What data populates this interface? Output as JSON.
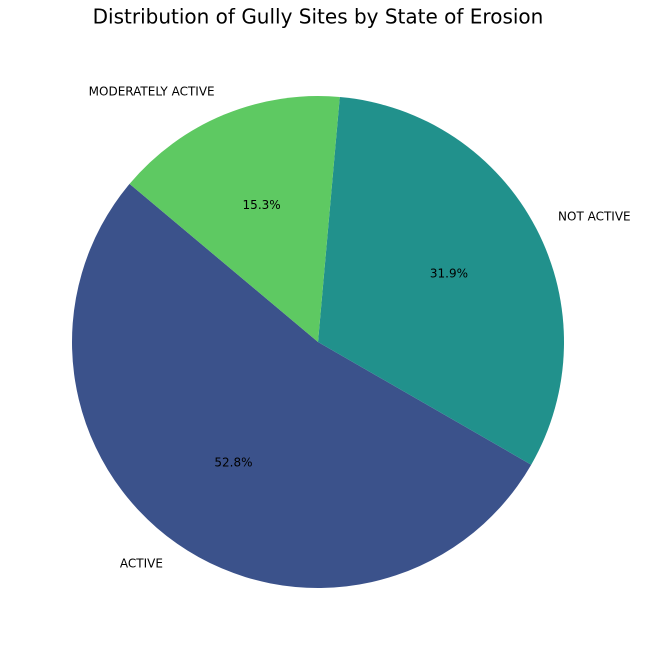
{
  "chart_data": {
    "type": "pie",
    "title": "Distribution of Gully Sites by State of Erosion",
    "categories": [
      "ACTIVE",
      "NOT ACTIVE",
      "MODERATELY ACTIVE"
    ],
    "values": [
      52.8,
      31.9,
      15.3
    ],
    "value_labels": [
      "52.8%",
      "31.9%",
      "15.3%"
    ],
    "colors": [
      "#3b528b",
      "#21918c",
      "#5ec962"
    ],
    "start_angle": 140
  }
}
